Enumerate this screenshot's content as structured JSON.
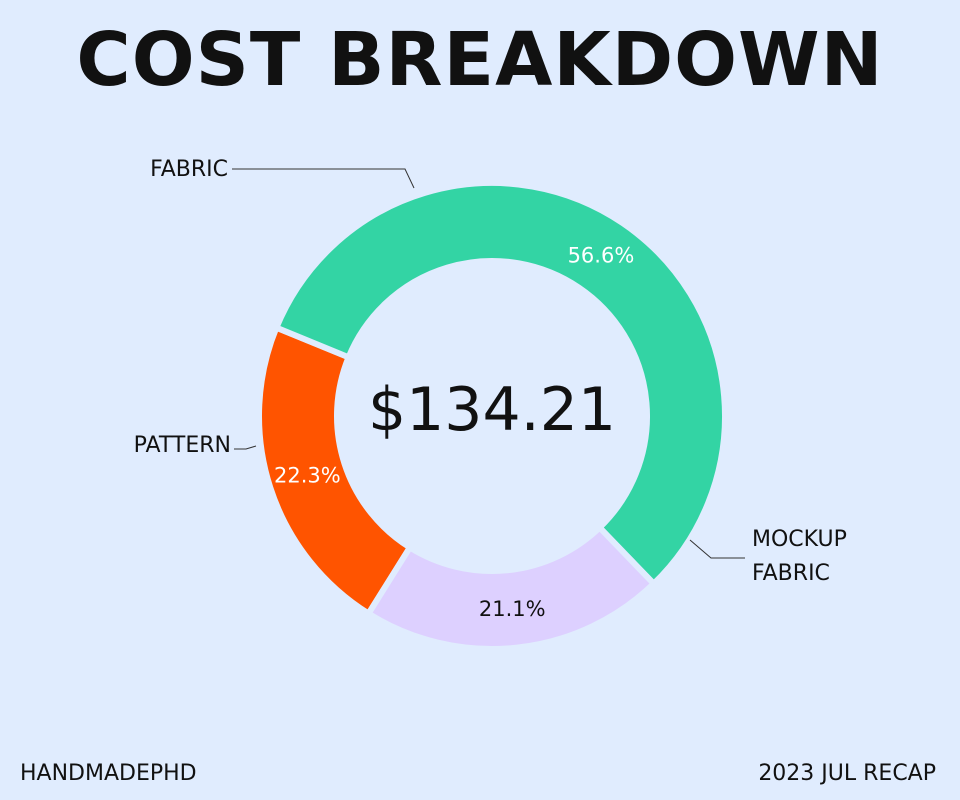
{
  "title": "COST BREAKDOWN",
  "footer": {
    "brand": "HANDMADEPHD",
    "period": "2023 JUL RECAP"
  },
  "chart_data": {
    "type": "pie",
    "variant": "donut",
    "center_label": "$134.21",
    "slices": [
      {
        "label": "FABRIC",
        "value": 22.3,
        "value_label": "22.3%",
        "color": "#ff5400",
        "text_color": "#ffffff"
      },
      {
        "label": "MOCKUP FABRIC",
        "label_lines": [
          "MOCKUP",
          "FABRIC"
        ],
        "value": 56.6,
        "value_label": "56.6%",
        "color": "#33d4a4",
        "text_color": "#ffffff"
      },
      {
        "label": "PATTERN",
        "value": 21.1,
        "value_label": "21.1%",
        "color": "#ddd0ff",
        "text_color": "#111111"
      }
    ],
    "background": "#e0ecfe",
    "legend": "none"
  }
}
